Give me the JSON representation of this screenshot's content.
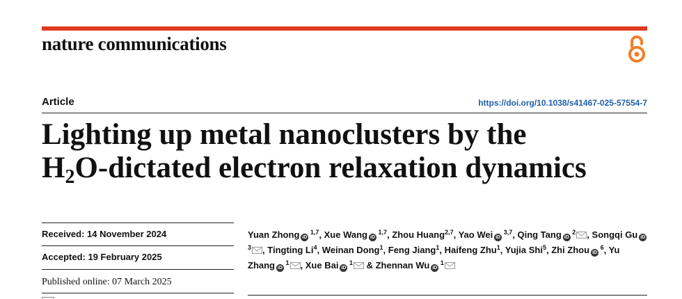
{
  "header": {
    "journal_name": "nature communications",
    "open_access_icon": "open-access-icon"
  },
  "article": {
    "type": "Article",
    "doi": "https://doi.org/10.1038/s41467-025-57554-7",
    "title_line1": "Lighting up metal nanoclusters by the",
    "title_line2_pre": "H",
    "title_line2_sub": "2",
    "title_line2_post": "O-dictated electron relaxation dynamics"
  },
  "dates": {
    "received": "Received: 14 November 2024",
    "accepted": "Accepted: 19 February 2025",
    "published": "Published online: 07 March 2025"
  },
  "authors": [
    {
      "name": "Yuan Zhong",
      "orcid": true,
      "aff": "1,7",
      "mail": false
    },
    {
      "name": "Xue Wang",
      "orcid": true,
      "aff": "1,7",
      "mail": false
    },
    {
      "name": "Zhou Huang",
      "orcid": false,
      "aff": "2,7",
      "mail": false
    },
    {
      "name": "Yao Wei",
      "orcid": true,
      "aff": "3,7",
      "mail": false
    },
    {
      "name": "Qing Tang",
      "orcid": true,
      "aff": "2",
      "mail": true
    },
    {
      "name": "Songqi Gu",
      "orcid": true,
      "aff": "3",
      "mail": true
    },
    {
      "name": "Tingting Li",
      "orcid": false,
      "aff": "4",
      "mail": false
    },
    {
      "name": "Weinan Dong",
      "orcid": false,
      "aff": "1",
      "mail": false
    },
    {
      "name": "Feng Jiang",
      "orcid": false,
      "aff": "1",
      "mail": false
    },
    {
      "name": "Haifeng Zhu",
      "orcid": false,
      "aff": "1",
      "mail": false
    },
    {
      "name": "Yujia Shi",
      "orcid": false,
      "aff": "5",
      "mail": false
    },
    {
      "name": "Zhi Zhou",
      "orcid": true,
      "aff": "6",
      "mail": false
    },
    {
      "name": "Yu Zhang",
      "orcid": true,
      "aff": "1",
      "mail": true
    },
    {
      "name": "Xue Bai",
      "orcid": true,
      "aff": "1",
      "mail": true
    },
    {
      "name": "Zhennan Wu",
      "orcid": true,
      "aff": "1",
      "mail": true
    }
  ],
  "colors": {
    "accent_red": "#e03a1f",
    "oa_orange": "#f07f2b",
    "doi_blue": "#1f5fa8"
  }
}
